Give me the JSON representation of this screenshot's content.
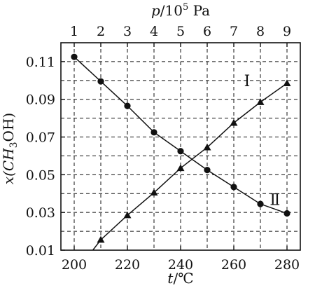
{
  "chart_data": {
    "type": "line",
    "x_bottom": {
      "label_var": "t",
      "label_unit": "/℃",
      "range": [
        195,
        285
      ],
      "ticks": [
        200,
        220,
        240,
        260,
        280
      ],
      "tick_labels": [
        "200",
        "220",
        "240",
        "260",
        "280"
      ],
      "grid": [
        200,
        210,
        220,
        230,
        240,
        250,
        260,
        270,
        280
      ]
    },
    "x_top": {
      "label_var": "p",
      "label_unit": "/10",
      "label_exp": "5",
      "label_tail": " Pa",
      "ticks": [
        1,
        2,
        3,
        4,
        5,
        6,
        7,
        8,
        9
      ],
      "tick_labels": [
        "1",
        "2",
        "3",
        "4",
        "5",
        "6",
        "7",
        "8",
        "9"
      ],
      "maps_to_bottom": [
        200,
        210,
        220,
        230,
        240,
        250,
        260,
        270,
        280
      ]
    },
    "y": {
      "label_prefix": "x(CH",
      "label_sub": "3",
      "label_suffix": "OH)",
      "range": [
        0.01,
        0.12
      ],
      "ticks": [
        0.01,
        0.03,
        0.05,
        0.07,
        0.09,
        0.11
      ],
      "tick_labels": [
        "0.01",
        "0.03",
        "0.05",
        "0.07",
        "0.09",
        "0.11"
      ],
      "grid": [
        0.02,
        0.03,
        0.04,
        0.05,
        0.06,
        0.07,
        0.08,
        0.09,
        0.1,
        0.11
      ]
    },
    "grid": true,
    "series": [
      {
        "label": "Ⅰ",
        "marker": "triangle",
        "x": [
          210,
          220,
          230,
          240,
          250,
          260,
          270,
          280
        ],
        "y": [
          0.0155,
          0.0285,
          0.0405,
          0.0535,
          0.0645,
          0.0775,
          0.0885,
          0.0985
        ],
        "line_from": [
          207,
          0.01
        ]
      },
      {
        "label": "Ⅱ",
        "marker": "circle",
        "x": [
          200,
          210,
          220,
          230,
          240,
          250,
          260,
          270,
          280
        ],
        "y": [
          0.1125,
          0.0995,
          0.0865,
          0.0725,
          0.0625,
          0.0525,
          0.0435,
          0.0345,
          0.0295
        ]
      }
    ]
  }
}
